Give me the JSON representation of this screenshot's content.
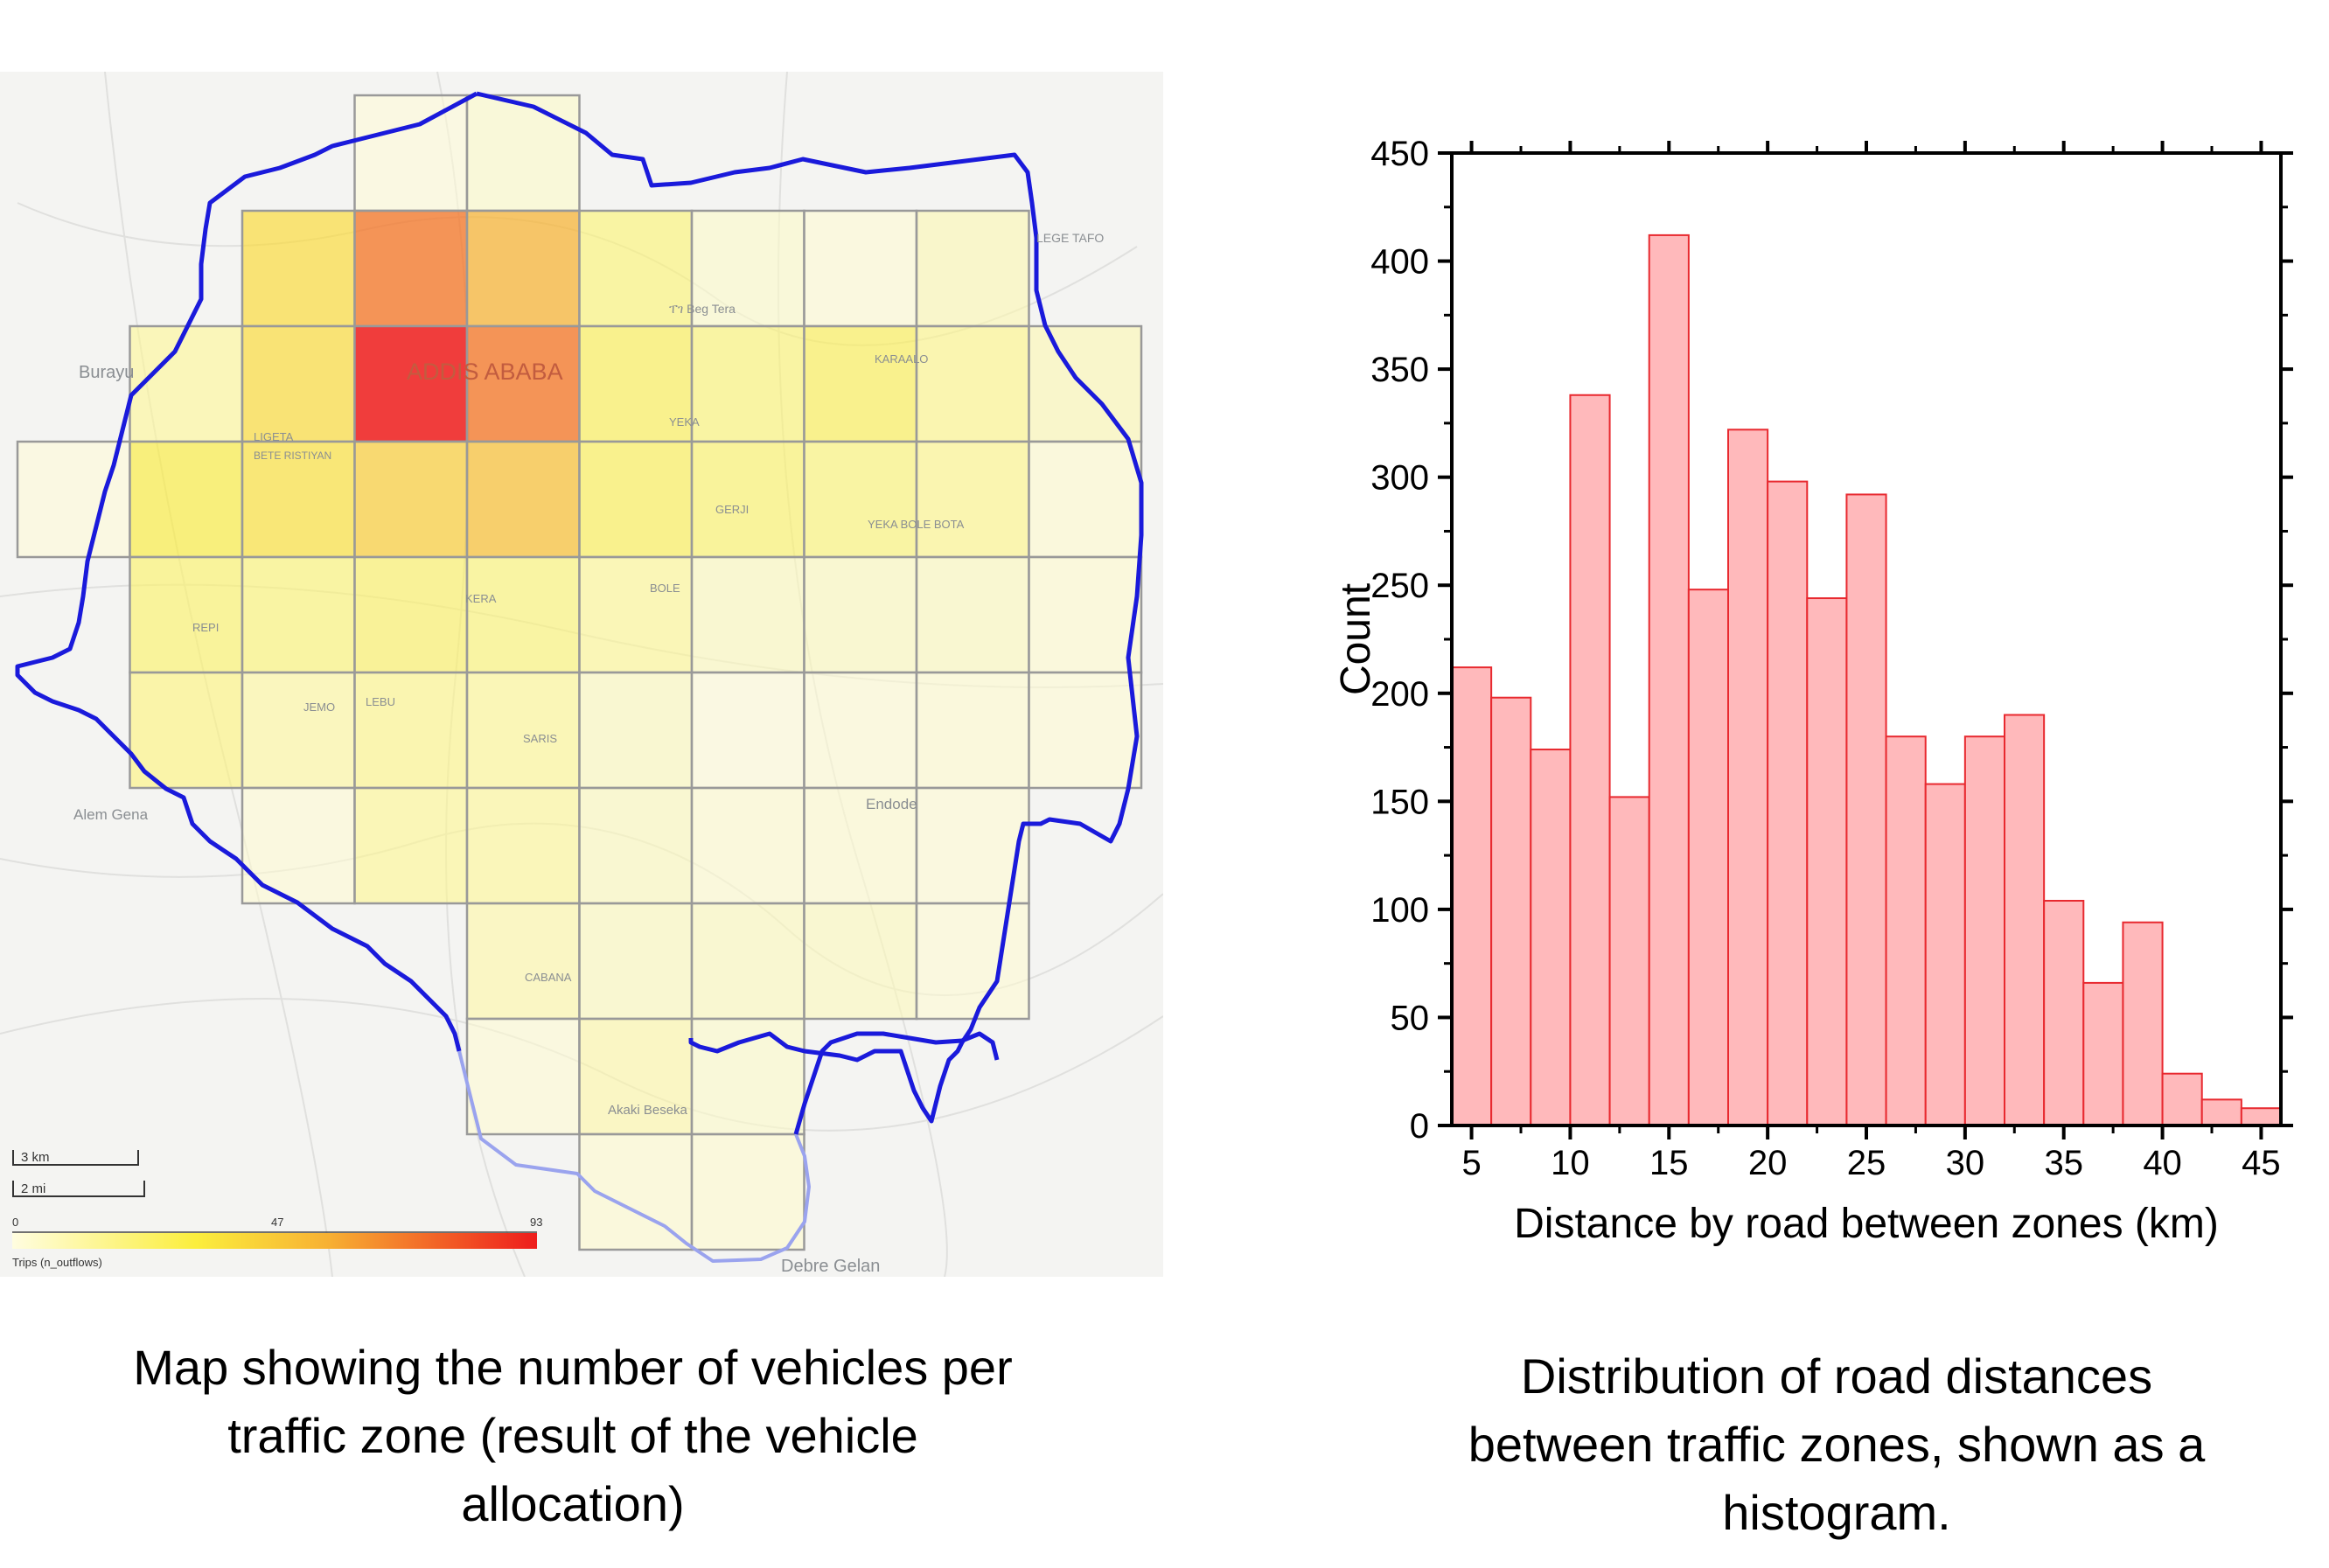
{
  "map": {
    "place_labels": {
      "burayu": "Burayu",
      "addis_ababa": "ADDIS ABABA",
      "legetafo": "LEGE TAFO",
      "beg_tera": "ፐገ Beg Tera",
      "karalo": "KARAALO",
      "ligeta": "LIGETA",
      "bete_ristiyan": "BETE RISTIYAN",
      "yeka": "YEKA",
      "gerji": "GERJI",
      "yeka_bole": "YEKA BOLE BOTA",
      "bole": "BOLE",
      "repi": "REPI",
      "kera": "KERA",
      "jemo": "JEMO",
      "lebu": "LEBU",
      "saris": "SARIS",
      "alem_gena": "Alem Gena",
      "endode": "Endode",
      "cabana": "CABANA",
      "akaki_besekа": "Akaki Beseka",
      "debre_gelan": "Debre Gelan"
    },
    "scale_km": "3 km",
    "scale_mi": "2 mi",
    "legend": {
      "min": "0",
      "mid": "47",
      "max": "93",
      "label": "Trips (n_outflows)",
      "color_low": "#fffde0",
      "color_mid": "#f7c33a",
      "color_high": "#ee1c1c"
    },
    "boundary_color": "#1a1adb",
    "zone_values": [
      {
        "row": 0,
        "col": 3,
        "v": 2
      },
      {
        "row": 0,
        "col": 4,
        "v": 5
      },
      {
        "row": 1,
        "col": 2,
        "v": 40
      },
      {
        "row": 1,
        "col": 3,
        "v": 70
      },
      {
        "row": 1,
        "col": 4,
        "v": 55
      },
      {
        "row": 1,
        "col": 5,
        "v": 22
      },
      {
        "row": 1,
        "col": 6,
        "v": 5
      },
      {
        "row": 1,
        "col": 7,
        "v": 3
      },
      {
        "row": 1,
        "col": 8,
        "v": 10
      },
      {
        "row": 2,
        "col": 1,
        "v": 15
      },
      {
        "row": 2,
        "col": 2,
        "v": 40
      },
      {
        "row": 2,
        "col": 3,
        "v": 93
      },
      {
        "row": 2,
        "col": 4,
        "v": 70
      },
      {
        "row": 2,
        "col": 5,
        "v": 28
      },
      {
        "row": 2,
        "col": 6,
        "v": 22
      },
      {
        "row": 2,
        "col": 7,
        "v": 28
      },
      {
        "row": 2,
        "col": 8,
        "v": 18
      },
      {
        "row": 2,
        "col": 9,
        "v": 10
      },
      {
        "row": 3,
        "col": 0,
        "v": 2
      },
      {
        "row": 3,
        "col": 1,
        "v": 33
      },
      {
        "row": 3,
        "col": 2,
        "v": 38
      },
      {
        "row": 3,
        "col": 3,
        "v": 45
      },
      {
        "row": 3,
        "col": 4,
        "v": 50
      },
      {
        "row": 3,
        "col": 5,
        "v": 28
      },
      {
        "row": 3,
        "col": 6,
        "v": 24
      },
      {
        "row": 3,
        "col": 7,
        "v": 22
      },
      {
        "row": 3,
        "col": 8,
        "v": 18
      },
      {
        "row": 3,
        "col": 9,
        "v": 4
      },
      {
        "row": 4,
        "col": 1,
        "v": 24
      },
      {
        "row": 4,
        "col": 2,
        "v": 22
      },
      {
        "row": 4,
        "col": 3,
        "v": 25
      },
      {
        "row": 4,
        "col": 4,
        "v": 22
      },
      {
        "row": 4,
        "col": 5,
        "v": 16
      },
      {
        "row": 4,
        "col": 6,
        "v": 8
      },
      {
        "row": 4,
        "col": 7,
        "v": 8
      },
      {
        "row": 4,
        "col": 8,
        "v": 8
      },
      {
        "row": 4,
        "col": 9,
        "v": 4
      },
      {
        "row": 5,
        "col": 1,
        "v": 20
      },
      {
        "row": 5,
        "col": 2,
        "v": 14
      },
      {
        "row": 5,
        "col": 3,
        "v": 18
      },
      {
        "row": 5,
        "col": 4,
        "v": 16
      },
      {
        "row": 5,
        "col": 5,
        "v": 8
      },
      {
        "row": 5,
        "col": 6,
        "v": 2
      },
      {
        "row": 5,
        "col": 7,
        "v": 3
      },
      {
        "row": 5,
        "col": 8,
        "v": 4
      },
      {
        "row": 5,
        "col": 9,
        "v": 3
      },
      {
        "row": 6,
        "col": 2,
        "v": 3
      },
      {
        "row": 6,
        "col": 3,
        "v": 16
      },
      {
        "row": 6,
        "col": 4,
        "v": 15
      },
      {
        "row": 6,
        "col": 5,
        "v": 8
      },
      {
        "row": 6,
        "col": 6,
        "v": 4
      },
      {
        "row": 6,
        "col": 7,
        "v": 4
      },
      {
        "row": 6,
        "col": 8,
        "v": 3
      },
      {
        "row": 7,
        "col": 4,
        "v": 12
      },
      {
        "row": 7,
        "col": 5,
        "v": 8
      },
      {
        "row": 7,
        "col": 6,
        "v": 8
      },
      {
        "row": 7,
        "col": 7,
        "v": 8
      },
      {
        "row": 7,
        "col": 8,
        "v": 3
      },
      {
        "row": 8,
        "col": 4,
        "v": 3
      },
      {
        "row": 8,
        "col": 5,
        "v": 12
      },
      {
        "row": 8,
        "col": 6,
        "v": 5
      },
      {
        "row": 9,
        "col": 5,
        "v": 4
      },
      {
        "row": 9,
        "col": 6,
        "v": 4
      }
    ]
  },
  "captions": {
    "map": [
      "Map showing the number of vehicles per",
      "traffic zone (result of the vehicle",
      "allocation)"
    ],
    "histogram": [
      "Distribution of road distances",
      "between traffic zones, shown as a",
      "histogram."
    ]
  },
  "chart_data": {
    "type": "bar",
    "xlabel": "Distance by road between zones (km)",
    "ylabel": "Count",
    "xlim": [
      4,
      46
    ],
    "ylim": [
      0,
      450
    ],
    "x_ticks": [
      5,
      10,
      15,
      20,
      25,
      30,
      35,
      40,
      45
    ],
    "y_ticks": [
      0,
      50,
      100,
      150,
      200,
      250,
      300,
      350,
      400,
      450
    ],
    "bin_width": 2,
    "bin_starts": [
      4,
      6,
      8,
      10,
      12,
      14,
      16,
      18,
      20,
      22,
      24,
      26,
      28,
      30,
      32,
      34,
      36,
      38,
      40,
      42,
      44
    ],
    "values": [
      212,
      198,
      174,
      338,
      152,
      412,
      248,
      322,
      298,
      244,
      292,
      180,
      158,
      180,
      190,
      104,
      66,
      94,
      24,
      12,
      8
    ],
    "bar_fill": "#ffb9bb",
    "bar_stroke": "#e8292f"
  }
}
